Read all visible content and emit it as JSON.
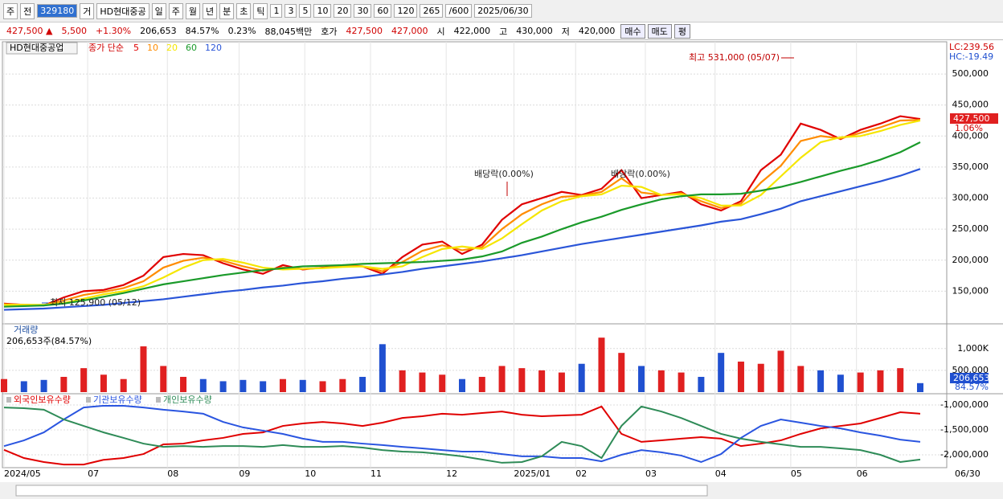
{
  "toolbar": {
    "row1": [
      "주",
      "전",
      "329180",
      "거",
      "HD현대중공",
      "일",
      "주",
      "월",
      "년",
      "분",
      "초",
      "틱",
      "1",
      "3",
      "5",
      "10",
      "20",
      "30",
      "60",
      "120",
      "265",
      "/600",
      "2025/06/30"
    ],
    "row2": [
      "427,500 ▲",
      "5,500",
      "+1.30%",
      "206,653",
      "84.57%",
      "0.23%",
      "88,045백만",
      "호가",
      "427,500",
      "427,000",
      "시",
      "422,000",
      "고",
      "430,000",
      "저",
      "420,000",
      "매수",
      "매도",
      "평"
    ]
  },
  "x_axis": {
    "ticks": [
      {
        "value": 0,
        "label": "2024/05"
      },
      {
        "value": 4.2,
        "label": "07"
      },
      {
        "value": 8.2,
        "label": "08"
      },
      {
        "value": 11.8,
        "label": "09"
      },
      {
        "value": 15.1,
        "label": "10"
      },
      {
        "value": 18.4,
        "label": "11"
      },
      {
        "value": 22.2,
        "label": "12"
      },
      {
        "value": 25.6,
        "label": "2025/01"
      },
      {
        "value": 28.7,
        "label": "02"
      },
      {
        "value": 32.2,
        "label": "03"
      },
      {
        "value": 35.7,
        "label": "04"
      },
      {
        "value": 39.5,
        "label": "05"
      },
      {
        "value": 42.8,
        "label": "06"
      }
    ],
    "end_label": "06/30"
  },
  "chart_data": [
    {
      "type": "line",
      "title": "HD현대중공업",
      "legend_title": "종가 단순",
      "ylim": [
        100000,
        548000
      ],
      "yticks": [
        {
          "value": 150000,
          "label": "150,000"
        },
        {
          "value": 200000,
          "label": "200,000"
        },
        {
          "value": 250000,
          "label": "250,000"
        },
        {
          "value": 300000,
          "label": "300,000"
        },
        {
          "value": 350000,
          "label": "350,000"
        },
        {
          "value": 400000,
          "label": "400,000"
        },
        {
          "value": 450000,
          "label": "450,000"
        },
        {
          "value": 500000,
          "label": "500,000"
        }
      ],
      "grid": true,
      "series": [
        {
          "name": "5",
          "color": "#e00000",
          "values": [
            130000,
            128000,
            127000,
            140000,
            150000,
            152000,
            160000,
            175000,
            205000,
            210000,
            208000,
            195000,
            185000,
            178000,
            192000,
            185000,
            188000,
            192000,
            190000,
            178000,
            205000,
            225000,
            230000,
            210000,
            225000,
            265000,
            290000,
            300000,
            310000,
            305000,
            315000,
            345000,
            300000,
            305000,
            310000,
            290000,
            280000,
            295000,
            345000,
            370000,
            420000,
            410000,
            395000,
            410000,
            420000,
            432000,
            427500
          ]
        },
        {
          "name": "10",
          "color": "#ff8c00",
          "values": [
            129000,
            128000,
            127500,
            135000,
            144000,
            149000,
            155000,
            166000,
            188000,
            199000,
            204000,
            199000,
            190000,
            183000,
            188000,
            186000,
            187500,
            190500,
            190000,
            182000,
            197000,
            215000,
            224000,
            216000,
            221000,
            250000,
            274000,
            290000,
            302000,
            304000,
            310000,
            332000,
            309000,
            305000,
            308000,
            295000,
            284000,
            291000,
            325000,
            352000,
            392000,
            400000,
            396000,
            405000,
            414000,
            425000,
            426000
          ]
        },
        {
          "name": "20",
          "color": "#f5e600",
          "values": [
            128000,
            128000,
            128000,
            131000,
            138000,
            145000,
            150000,
            158000,
            172000,
            188000,
            200000,
            202000,
            196000,
            188000,
            185000,
            186000,
            187000,
            189000,
            190000,
            186000,
            190000,
            205000,
            218000,
            222000,
            218000,
            235000,
            258000,
            280000,
            295000,
            303000,
            306000,
            320000,
            318000,
            305000,
            306000,
            300000,
            288000,
            288000,
            305000,
            335000,
            365000,
            390000,
            398000,
            400000,
            408000,
            418000,
            425000
          ]
        },
        {
          "name": "60",
          "color": "#1a9a2a",
          "values": [
            125000,
            126000,
            127000,
            130000,
            135000,
            141000,
            147000,
            154000,
            161000,
            166000,
            171000,
            176000,
            180000,
            184000,
            187000,
            190000,
            191000,
            192000,
            194000,
            195000,
            196000,
            197000,
            199000,
            201000,
            206000,
            214000,
            228000,
            238000,
            250000,
            261000,
            270000,
            281000,
            290000,
            298000,
            303000,
            306000,
            306000,
            307000,
            312000,
            318000,
            326000,
            335000,
            344000,
            352000,
            362000,
            374000,
            390000
          ]
        },
        {
          "name": "120",
          "color": "#2a55d8",
          "values": [
            120000,
            121000,
            122000,
            124000,
            126000,
            128000,
            131000,
            134000,
            137000,
            141000,
            145000,
            149000,
            152000,
            156000,
            159000,
            163000,
            166000,
            170000,
            173000,
            177000,
            181000,
            186000,
            190000,
            194000,
            198000,
            203000,
            208000,
            214000,
            220000,
            226000,
            231000,
            236000,
            241000,
            246000,
            251000,
            256000,
            262000,
            266000,
            274000,
            283000,
            295000,
            303000,
            311000,
            319000,
            327000,
            336000,
            347000
          ]
        }
      ],
      "annotations": [
        "최고 531,000 (05/07)",
        "최저 125,900 (05/12)",
        "배당락(0.00%)",
        "배당락(0.00%)"
      ],
      "right_labels": [
        "LC:239.56",
        "HC:-19.49"
      ],
      "last_value_label": "427,500",
      "last_change_label": "1.06%"
    },
    {
      "type": "bar",
      "title": "거래량",
      "subtitle": "206,653주(84.57%)",
      "ylim": [
        0,
        1530000
      ],
      "yticks": [
        {
          "value": 500000,
          "label": "500,000"
        },
        {
          "value": 1000000,
          "label": "1,000K"
        }
      ],
      "up_color": "#e02020",
      "down_color": "#2050d0",
      "values": [
        300000,
        250000,
        280000,
        350000,
        550000,
        400000,
        300000,
        1050000,
        600000,
        350000,
        300000,
        250000,
        280000,
        250000,
        300000,
        280000,
        250000,
        300000,
        350000,
        1100000,
        500000,
        450000,
        400000,
        300000,
        350000,
        600000,
        550000,
        500000,
        450000,
        650000,
        1250000,
        900000,
        600000,
        500000,
        450000,
        350000,
        900000,
        700000,
        650000,
        950000,
        600000,
        500000,
        400000,
        450000,
        500000,
        550000,
        206653
      ],
      "last_value_label": "206,653",
      "last_pct_label": "84.57%"
    },
    {
      "type": "line",
      "ylim": [
        -2258000,
        -806000
      ],
      "yticks": [
        {
          "value": -1000000,
          "label": "-1,000,000"
        },
        {
          "value": -1500000,
          "label": "-1,500,000"
        },
        {
          "value": -2000000,
          "label": "-2,000,000"
        }
      ],
      "series": [
        {
          "name": "외국인보유수량",
          "color": "#e00000",
          "values": [
            -1900000,
            -2065000,
            -2145000,
            -2195000,
            -2195000,
            -2100000,
            -2065000,
            -1985000,
            -1790000,
            -1775000,
            -1710000,
            -1660000,
            -1580000,
            -1550000,
            -1420000,
            -1370000,
            -1340000,
            -1370000,
            -1420000,
            -1355000,
            -1260000,
            -1225000,
            -1175000,
            -1195000,
            -1160000,
            -1130000,
            -1195000,
            -1225000,
            -1210000,
            -1195000,
            -1030000,
            -1580000,
            -1740000,
            -1710000,
            -1675000,
            -1645000,
            -1675000,
            -1825000,
            -1775000,
            -1710000,
            -1580000,
            -1470000,
            -1420000,
            -1370000,
            -1260000,
            -1145000,
            -1175000
          ]
        },
        {
          "name": "기관보유수량",
          "color": "#2a55e0",
          "values": [
            -1825000,
            -1710000,
            -1550000,
            -1290000,
            -1050000,
            -1015000,
            -1015000,
            -1050000,
            -1095000,
            -1130000,
            -1175000,
            -1340000,
            -1450000,
            -1515000,
            -1580000,
            -1675000,
            -1740000,
            -1740000,
            -1775000,
            -1805000,
            -1840000,
            -1870000,
            -1905000,
            -1935000,
            -1935000,
            -1985000,
            -2030000,
            -2030000,
            -2065000,
            -2065000,
            -2130000,
            -2000000,
            -1905000,
            -1950000,
            -2015000,
            -2145000,
            -1985000,
            -1660000,
            -1420000,
            -1290000,
            -1355000,
            -1420000,
            -1470000,
            -1550000,
            -1615000,
            -1695000,
            -1740000
          ]
        },
        {
          "name": "개인보유수량",
          "color": "#2e8b57",
          "values": [
            -1050000,
            -1065000,
            -1095000,
            -1290000,
            -1420000,
            -1550000,
            -1660000,
            -1775000,
            -1840000,
            -1825000,
            -1840000,
            -1825000,
            -1825000,
            -1840000,
            -1805000,
            -1840000,
            -1840000,
            -1825000,
            -1855000,
            -1905000,
            -1935000,
            -1950000,
            -1985000,
            -2030000,
            -2095000,
            -2160000,
            -2145000,
            -2030000,
            -1740000,
            -1825000,
            -2065000,
            -1420000,
            -1030000,
            -1130000,
            -1260000,
            -1420000,
            -1580000,
            -1675000,
            -1740000,
            -1790000,
            -1840000,
            -1840000,
            -1870000,
            -1905000,
            -2000000,
            -2145000,
            -2095000
          ]
        }
      ]
    }
  ]
}
